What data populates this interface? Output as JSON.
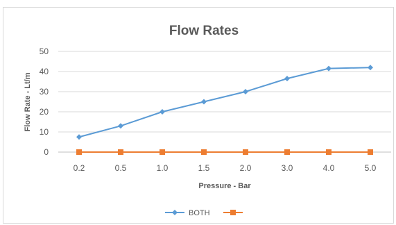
{
  "chart_data": {
    "type": "line",
    "title": "Flow Rates",
    "xlabel": "Pressure - Bar",
    "ylabel": "Flow Rate - Lt/m",
    "categories": [
      "0.2",
      "0.5",
      "1.0",
      "1.5",
      "2.0",
      "3.0",
      "4.0",
      "5.0"
    ],
    "ylim": [
      0,
      50
    ],
    "yticks": [
      "0",
      "10",
      "20",
      "30",
      "40",
      "50"
    ],
    "grid": true,
    "legend_position": "bottom",
    "series": [
      {
        "name": "BOTH",
        "values": [
          7.5,
          13,
          20,
          25,
          30,
          36.5,
          41.5,
          42
        ],
        "color": "#5b9bd5",
        "marker": "diamond"
      },
      {
        "name": "",
        "values": [
          0,
          0,
          0,
          0,
          0,
          0,
          0,
          0
        ],
        "color": "#ed7d31",
        "marker": "square"
      }
    ]
  }
}
